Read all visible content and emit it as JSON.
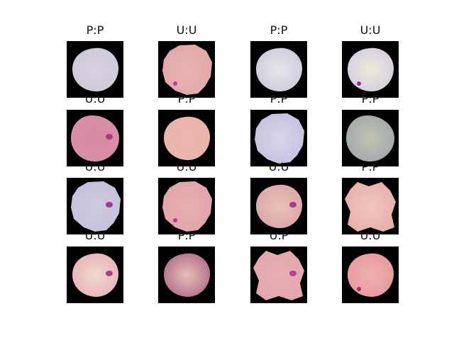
{
  "figure": {
    "cells": [
      {
        "label": "P:P",
        "cell": "#cfc8d8",
        "center": "#d8d2e0",
        "spot": null,
        "shape": "round"
      },
      {
        "label": "U:U",
        "cell": "#e3a8a9",
        "center": "#e8b3b2",
        "spot": "#b5409a",
        "shape": "ragged"
      },
      {
        "label": "P:P",
        "cell": "#d0cbdc",
        "center": "#e8e6e8",
        "spot": null,
        "shape": "round"
      },
      {
        "label": "U:U",
        "cell": "#d6cfe0",
        "center": "#ecebd9",
        "spot": "#9a2a92",
        "shape": "round"
      },
      {
        "label": "U:U",
        "cell": "#d98fa5",
        "center": "#d58aa6",
        "spot": "#a93a7e",
        "shape": "oval"
      },
      {
        "label": "P:P",
        "cell": "#e9b3a8",
        "center": "#ebb9ae",
        "spot": null,
        "shape": "round"
      },
      {
        "label": "P:P",
        "cell": "#c8c1e0",
        "center": "#d9d5ea",
        "spot": null,
        "shape": "ragged"
      },
      {
        "label": "P:P",
        "cell": "#a3a9ad",
        "center": "#c0c3b2",
        "spot": null,
        "shape": "oval"
      },
      {
        "label": "U:U",
        "cell": "#c6c1da",
        "center": "#cfcadf",
        "spot": "#a03a9a",
        "shape": "ragged"
      },
      {
        "label": "U:U",
        "cell": "#e2a4a9",
        "center": "#e6b0b0",
        "spot": "#b33a8a",
        "shape": "ragged"
      },
      {
        "label": "U:U",
        "cell": "#dba7a8",
        "center": "#e8c2b8",
        "spot": "#b23788",
        "shape": "round"
      },
      {
        "label": "P:P",
        "cell": "#e8b0ad",
        "center": "#efc7bd",
        "spot": null,
        "shape": "blob"
      },
      {
        "label": "U:U",
        "cell": "#e7b6b8",
        "center": "#f1d7cf",
        "spot": "#b03b88",
        "shape": "round"
      },
      {
        "label": "P:P",
        "cell": "#b3708e",
        "center": "#e6c0b8",
        "spot": null,
        "shape": "round"
      },
      {
        "label": "U:P",
        "cell": "#e3a6ad",
        "center": "#e7afb2",
        "spot": "#b6409a",
        "shape": "blob"
      },
      {
        "label": "U:U",
        "cell": "#e79aa0",
        "center": "#efb1b0",
        "spot": "#b2205e",
        "shape": "round"
      }
    ]
  }
}
